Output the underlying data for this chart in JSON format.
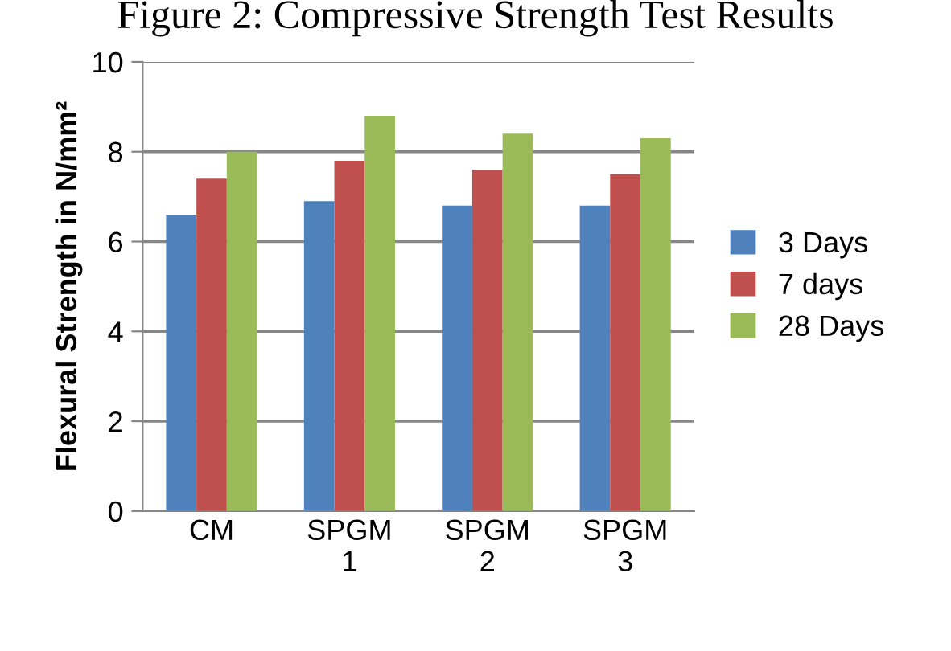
{
  "chart_data": {
    "type": "bar",
    "title": "Figure 2: Compressive Strength Test Results",
    "ylabel": "Flexural Strength in N/mm²",
    "categories": [
      "CM",
      "SPGM\n1",
      "SPGM\n2",
      "SPGM\n3"
    ],
    "series": [
      {
        "name": "3 Days",
        "color": "#4f81bd",
        "values": [
          6.6,
          6.9,
          6.8,
          6.8
        ]
      },
      {
        "name": "7 days",
        "color": "#c0504d",
        "values": [
          7.4,
          7.8,
          7.6,
          7.5
        ]
      },
      {
        "name": "28 Days",
        "color": "#9bbb59",
        "values": [
          8.0,
          8.8,
          8.4,
          8.3
        ]
      }
    ],
    "ylim": [
      0,
      10
    ],
    "yticks": [
      0,
      2,
      4,
      6,
      8,
      10
    ],
    "grid": "y",
    "legend": "right"
  }
}
